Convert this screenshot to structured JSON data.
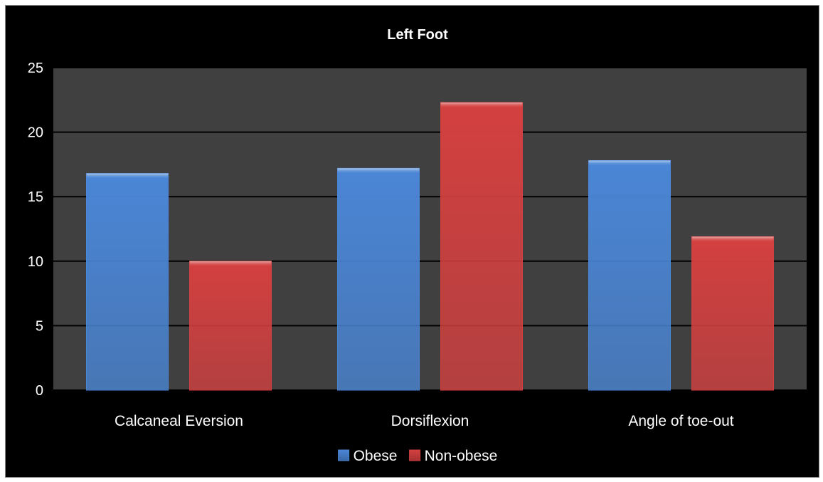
{
  "chart_data": {
    "type": "bar",
    "title": "Left Foot",
    "xlabel": "",
    "ylabel": "",
    "categories": [
      "Calcaneal Eversion",
      "Dorsiflexion",
      "Angle of toe-out"
    ],
    "series": [
      {
        "name": "Obese",
        "values": [
          16.8,
          17.2,
          17.8
        ],
        "color": "#4a86d6"
      },
      {
        "name": "Non-obese",
        "values": [
          10.0,
          22.3,
          11.9
        ],
        "color": "#d44040"
      }
    ],
    "ylim": [
      0,
      25
    ],
    "yticks": [
      "0",
      "5",
      "10",
      "15",
      "20",
      "25"
    ],
    "grid": true,
    "legend": "bottom",
    "colors": {
      "background": "#000000",
      "plot_area": "#404040",
      "gridline": "#000000",
      "text": "#ffffff"
    }
  }
}
